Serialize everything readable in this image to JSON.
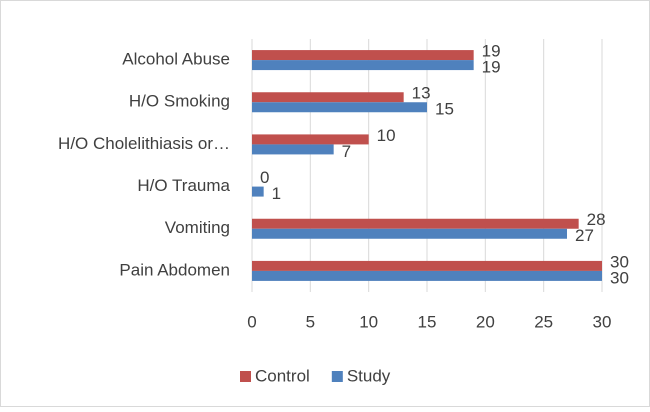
{
  "chart_data": {
    "type": "bar",
    "orientation": "horizontal",
    "categories": [
      "Alcohol Abuse",
      "H/O Smoking",
      "H/O Cholelithiasis or…",
      "H/O Trauma",
      "Vomiting",
      "Pain Abdomen"
    ],
    "series": [
      {
        "name": "Control",
        "color": "#c0504d",
        "values": [
          19,
          13,
          10,
          0,
          28,
          30
        ]
      },
      {
        "name": "Study",
        "color": "#4f81bd",
        "values": [
          19,
          15,
          7,
          1,
          27,
          30
        ]
      }
    ],
    "xlim": [
      0,
      30
    ],
    "xticks": [
      0,
      5,
      10,
      15,
      20,
      25,
      30
    ],
    "grid": true,
    "legend": "bottom"
  }
}
